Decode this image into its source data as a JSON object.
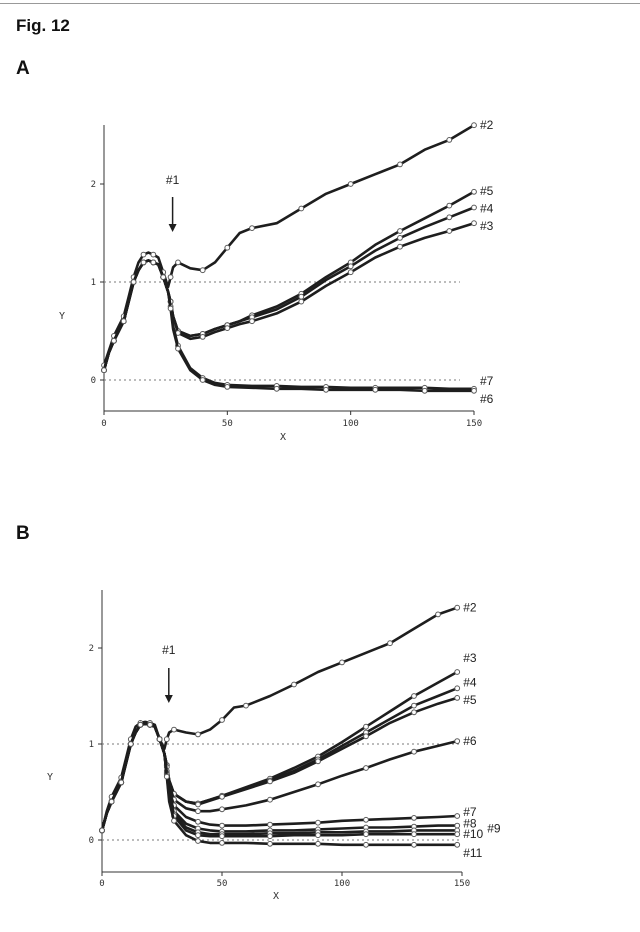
{
  "figure": {
    "title": "Fig. 12"
  },
  "panels": [
    {
      "label": "A"
    },
    {
      "label": "B"
    }
  ],
  "colors": {
    "ink": "#1e1e1e",
    "marker": "#5a5a5a",
    "grid": "#7a7a7a"
  },
  "chart_data": [
    {
      "type": "line",
      "panel": "A",
      "xlabel": "X",
      "ylabel": "Y",
      "xlim": [
        0,
        150
      ],
      "ylim": [
        -0.3,
        2.6
      ],
      "xticks": [
        0,
        50,
        100,
        150
      ],
      "yticks": [
        0,
        1,
        2
      ],
      "reference_lines": [
        0,
        1
      ],
      "annotation": {
        "text": "#1",
        "x": 27
      },
      "series": [
        {
          "name": "#2",
          "x": [
            0,
            2,
            4,
            6,
            8,
            10,
            12,
            14,
            16,
            18,
            20,
            22,
            24,
            26,
            27,
            28,
            30,
            35,
            40,
            45,
            50,
            55,
            60,
            70,
            80,
            90,
            100,
            110,
            120,
            130,
            140,
            150
          ],
          "y": [
            0.15,
            0.3,
            0.45,
            0.55,
            0.65,
            0.85,
            1.05,
            1.2,
            1.28,
            1.3,
            1.28,
            1.25,
            1.1,
            0.95,
            1.05,
            1.15,
            1.2,
            1.14,
            1.12,
            1.2,
            1.35,
            1.5,
            1.55,
            1.6,
            1.75,
            1.9,
            2.0,
            2.1,
            2.2,
            2.35,
            2.45,
            2.6
          ]
        },
        {
          "name": "#5",
          "x": [
            0,
            2,
            4,
            6,
            8,
            10,
            12,
            14,
            16,
            18,
            20,
            22,
            24,
            26,
            27,
            28,
            30,
            35,
            40,
            45,
            50,
            55,
            60,
            70,
            80,
            90,
            100,
            110,
            120,
            130,
            140,
            150
          ],
          "y": [
            0.1,
            0.28,
            0.4,
            0.5,
            0.6,
            0.8,
            1.0,
            1.12,
            1.2,
            1.22,
            1.2,
            1.18,
            1.05,
            0.9,
            0.8,
            0.65,
            0.5,
            0.45,
            0.47,
            0.52,
            0.56,
            0.6,
            0.66,
            0.75,
            0.88,
            1.05,
            1.2,
            1.38,
            1.52,
            1.65,
            1.78,
            1.92
          ]
        },
        {
          "name": "#4",
          "x": [
            0,
            2,
            4,
            6,
            8,
            10,
            12,
            14,
            16,
            18,
            20,
            22,
            24,
            26,
            27,
            28,
            30,
            35,
            40,
            45,
            50,
            55,
            60,
            70,
            80,
            90,
            100,
            110,
            120,
            130,
            140,
            150
          ],
          "y": [
            0.1,
            0.28,
            0.4,
            0.5,
            0.6,
            0.8,
            1.0,
            1.12,
            1.2,
            1.22,
            1.2,
            1.18,
            1.05,
            0.9,
            0.8,
            0.65,
            0.5,
            0.45,
            0.47,
            0.52,
            0.56,
            0.6,
            0.64,
            0.72,
            0.85,
            1.02,
            1.16,
            1.32,
            1.45,
            1.56,
            1.66,
            1.76
          ]
        },
        {
          "name": "#3",
          "x": [
            0,
            2,
            4,
            6,
            8,
            10,
            12,
            14,
            16,
            18,
            20,
            22,
            24,
            26,
            27,
            28,
            30,
            35,
            40,
            45,
            50,
            55,
            60,
            70,
            80,
            90,
            100,
            110,
            120,
            130,
            140,
            150
          ],
          "y": [
            0.1,
            0.28,
            0.4,
            0.5,
            0.6,
            0.8,
            1.0,
            1.12,
            1.2,
            1.22,
            1.2,
            1.18,
            1.05,
            0.9,
            0.8,
            0.65,
            0.48,
            0.42,
            0.44,
            0.49,
            0.53,
            0.57,
            0.6,
            0.68,
            0.8,
            0.96,
            1.1,
            1.25,
            1.36,
            1.45,
            1.52,
            1.6
          ]
        },
        {
          "name": "#7",
          "x": [
            0,
            2,
            4,
            6,
            8,
            10,
            12,
            14,
            16,
            18,
            20,
            22,
            24,
            26,
            27,
            28,
            30,
            35,
            40,
            45,
            50,
            60,
            70,
            80,
            90,
            100,
            110,
            120,
            130,
            140,
            150
          ],
          "y": [
            0.1,
            0.28,
            0.4,
            0.5,
            0.6,
            0.8,
            1.0,
            1.12,
            1.2,
            1.22,
            1.2,
            1.18,
            1.05,
            0.9,
            0.75,
            0.55,
            0.35,
            0.12,
            0.02,
            -0.03,
            -0.05,
            -0.06,
            -0.06,
            -0.07,
            -0.07,
            -0.08,
            -0.08,
            -0.08,
            -0.08,
            -0.09,
            -0.09
          ]
        },
        {
          "name": "#6",
          "x": [
            0,
            2,
            4,
            6,
            8,
            10,
            12,
            14,
            16,
            18,
            20,
            22,
            24,
            26,
            27,
            28,
            30,
            35,
            40,
            45,
            50,
            60,
            70,
            80,
            90,
            100,
            110,
            120,
            130,
            140,
            150
          ],
          "y": [
            0.1,
            0.28,
            0.4,
            0.5,
            0.6,
            0.8,
            1.0,
            1.12,
            1.2,
            1.22,
            1.2,
            1.18,
            1.05,
            0.9,
            0.73,
            0.52,
            0.32,
            0.1,
            0.0,
            -0.05,
            -0.07,
            -0.08,
            -0.09,
            -0.09,
            -0.1,
            -0.1,
            -0.1,
            -0.1,
            -0.11,
            -0.11,
            -0.11
          ]
        }
      ]
    },
    {
      "type": "line",
      "panel": "B",
      "xlabel": "X",
      "ylabel": "Y",
      "xlim": [
        0,
        150
      ],
      "ylim": [
        -0.3,
        2.6
      ],
      "xticks": [
        0,
        50,
        100,
        150
      ],
      "yticks": [
        0,
        1,
        2
      ],
      "reference_lines": [
        0,
        1
      ],
      "annotation": {
        "text": "#1",
        "x": 27
      },
      "series": [
        {
          "name": "#2",
          "x": [
            0,
            2,
            4,
            6,
            8,
            10,
            12,
            14,
            16,
            18,
            20,
            22,
            24,
            26,
            27,
            28,
            30,
            35,
            40,
            45,
            50,
            55,
            60,
            70,
            80,
            90,
            100,
            110,
            120,
            130,
            140,
            148
          ],
          "y": [
            0.1,
            0.3,
            0.45,
            0.55,
            0.65,
            0.85,
            1.05,
            1.18,
            1.22,
            1.23,
            1.22,
            1.2,
            1.05,
            0.95,
            1.05,
            1.12,
            1.15,
            1.12,
            1.1,
            1.15,
            1.25,
            1.38,
            1.4,
            1.5,
            1.62,
            1.75,
            1.85,
            1.95,
            2.05,
            2.2,
            2.35,
            2.42
          ]
        },
        {
          "name": "#3",
          "x": [
            0,
            2,
            4,
            6,
            8,
            10,
            12,
            14,
            16,
            18,
            20,
            22,
            24,
            26,
            27,
            28,
            30,
            35,
            40,
            45,
            50,
            60,
            70,
            80,
            90,
            100,
            110,
            120,
            130,
            140,
            148
          ],
          "y": [
            0.1,
            0.28,
            0.4,
            0.5,
            0.6,
            0.8,
            1.0,
            1.12,
            1.2,
            1.21,
            1.2,
            1.18,
            1.05,
            0.9,
            0.78,
            0.62,
            0.48,
            0.4,
            0.38,
            0.42,
            0.46,
            0.55,
            0.64,
            0.75,
            0.87,
            1.02,
            1.18,
            1.34,
            1.5,
            1.64,
            1.75
          ]
        },
        {
          "name": "#4",
          "x": [
            0,
            2,
            4,
            6,
            8,
            10,
            12,
            14,
            16,
            18,
            20,
            22,
            24,
            26,
            27,
            28,
            30,
            35,
            40,
            45,
            50,
            60,
            70,
            80,
            90,
            100,
            110,
            120,
            130,
            140,
            148
          ],
          "y": [
            0.1,
            0.28,
            0.4,
            0.5,
            0.6,
            0.8,
            1.0,
            1.12,
            1.2,
            1.21,
            1.2,
            1.18,
            1.05,
            0.9,
            0.78,
            0.62,
            0.48,
            0.4,
            0.38,
            0.42,
            0.46,
            0.54,
            0.62,
            0.72,
            0.84,
            0.98,
            1.12,
            1.26,
            1.4,
            1.5,
            1.58
          ]
        },
        {
          "name": "#5",
          "x": [
            0,
            2,
            4,
            6,
            8,
            10,
            12,
            14,
            16,
            18,
            20,
            22,
            24,
            26,
            27,
            28,
            30,
            35,
            40,
            45,
            50,
            60,
            70,
            80,
            90,
            100,
            110,
            120,
            130,
            140,
            148
          ],
          "y": [
            0.1,
            0.28,
            0.4,
            0.5,
            0.6,
            0.8,
            1.0,
            1.12,
            1.2,
            1.21,
            1.2,
            1.18,
            1.05,
            0.9,
            0.78,
            0.62,
            0.48,
            0.4,
            0.37,
            0.41,
            0.45,
            0.53,
            0.61,
            0.7,
            0.82,
            0.95,
            1.08,
            1.22,
            1.33,
            1.42,
            1.48
          ]
        },
        {
          "name": "#6",
          "x": [
            0,
            2,
            4,
            6,
            8,
            10,
            12,
            14,
            16,
            18,
            20,
            22,
            24,
            26,
            27,
            28,
            30,
            35,
            40,
            45,
            50,
            60,
            70,
            80,
            90,
            100,
            110,
            120,
            130,
            140,
            148
          ],
          "y": [
            0.1,
            0.28,
            0.4,
            0.5,
            0.6,
            0.8,
            1.0,
            1.12,
            1.2,
            1.21,
            1.2,
            1.18,
            1.05,
            0.9,
            0.76,
            0.58,
            0.42,
            0.33,
            0.3,
            0.3,
            0.32,
            0.36,
            0.42,
            0.5,
            0.58,
            0.67,
            0.75,
            0.84,
            0.92,
            0.98,
            1.03
          ]
        },
        {
          "name": "#7",
          "x": [
            0,
            2,
            4,
            6,
            8,
            10,
            12,
            14,
            16,
            18,
            20,
            22,
            24,
            26,
            27,
            28,
            30,
            35,
            40,
            45,
            50,
            60,
            70,
            80,
            90,
            100,
            110,
            120,
            130,
            140,
            148
          ],
          "y": [
            0.1,
            0.28,
            0.4,
            0.5,
            0.6,
            0.8,
            1.0,
            1.12,
            1.2,
            1.21,
            1.2,
            1.18,
            1.05,
            0.9,
            0.72,
            0.52,
            0.36,
            0.24,
            0.19,
            0.16,
            0.15,
            0.15,
            0.16,
            0.17,
            0.18,
            0.2,
            0.21,
            0.22,
            0.23,
            0.24,
            0.25
          ]
        },
        {
          "name": "#8",
          "x": [
            0,
            2,
            4,
            6,
            8,
            10,
            12,
            14,
            16,
            18,
            20,
            22,
            24,
            26,
            27,
            28,
            30,
            35,
            40,
            45,
            50,
            60,
            70,
            80,
            90,
            100,
            110,
            120,
            130,
            140,
            148
          ],
          "y": [
            0.1,
            0.28,
            0.4,
            0.5,
            0.6,
            0.8,
            1.0,
            1.12,
            1.2,
            1.21,
            1.2,
            1.18,
            1.05,
            0.9,
            0.7,
            0.48,
            0.3,
            0.17,
            0.12,
            0.1,
            0.09,
            0.09,
            0.1,
            0.1,
            0.11,
            0.12,
            0.13,
            0.13,
            0.14,
            0.15,
            0.15
          ]
        },
        {
          "name": "#9",
          "x": [
            0,
            2,
            4,
            6,
            8,
            10,
            12,
            14,
            16,
            18,
            20,
            22,
            24,
            26,
            27,
            28,
            30,
            35,
            40,
            45,
            50,
            60,
            70,
            80,
            90,
            100,
            110,
            120,
            130,
            140,
            148
          ],
          "y": [
            0.1,
            0.28,
            0.4,
            0.5,
            0.6,
            0.8,
            1.0,
            1.12,
            1.2,
            1.21,
            1.2,
            1.18,
            1.05,
            0.9,
            0.69,
            0.46,
            0.27,
            0.13,
            0.08,
            0.06,
            0.06,
            0.06,
            0.07,
            0.07,
            0.08,
            0.08,
            0.09,
            0.09,
            0.1,
            0.1,
            0.1
          ]
        },
        {
          "name": "#10",
          "x": [
            0,
            2,
            4,
            6,
            8,
            10,
            12,
            14,
            16,
            18,
            20,
            22,
            24,
            26,
            27,
            28,
            30,
            35,
            40,
            45,
            50,
            60,
            70,
            80,
            90,
            100,
            110,
            120,
            130,
            140,
            148
          ],
          "y": [
            0.1,
            0.28,
            0.4,
            0.5,
            0.6,
            0.8,
            1.0,
            1.12,
            1.2,
            1.21,
            1.2,
            1.18,
            1.05,
            0.9,
            0.68,
            0.44,
            0.25,
            0.1,
            0.05,
            0.04,
            0.04,
            0.04,
            0.04,
            0.05,
            0.05,
            0.05,
            0.06,
            0.06,
            0.06,
            0.06,
            0.06
          ]
        },
        {
          "name": "#11",
          "x": [
            0,
            2,
            4,
            6,
            8,
            10,
            12,
            14,
            16,
            18,
            20,
            22,
            24,
            26,
            27,
            28,
            30,
            35,
            40,
            45,
            50,
            60,
            70,
            80,
            90,
            100,
            110,
            120,
            130,
            140,
            148
          ],
          "y": [
            0.1,
            0.28,
            0.4,
            0.5,
            0.6,
            0.8,
            1.0,
            1.12,
            1.2,
            1.21,
            1.2,
            1.18,
            1.05,
            0.9,
            0.66,
            0.4,
            0.2,
            0.05,
            -0.01,
            -0.03,
            -0.03,
            -0.03,
            -0.04,
            -0.04,
            -0.04,
            -0.05,
            -0.05,
            -0.05,
            -0.05,
            -0.05,
            -0.05
          ]
        }
      ]
    }
  ]
}
